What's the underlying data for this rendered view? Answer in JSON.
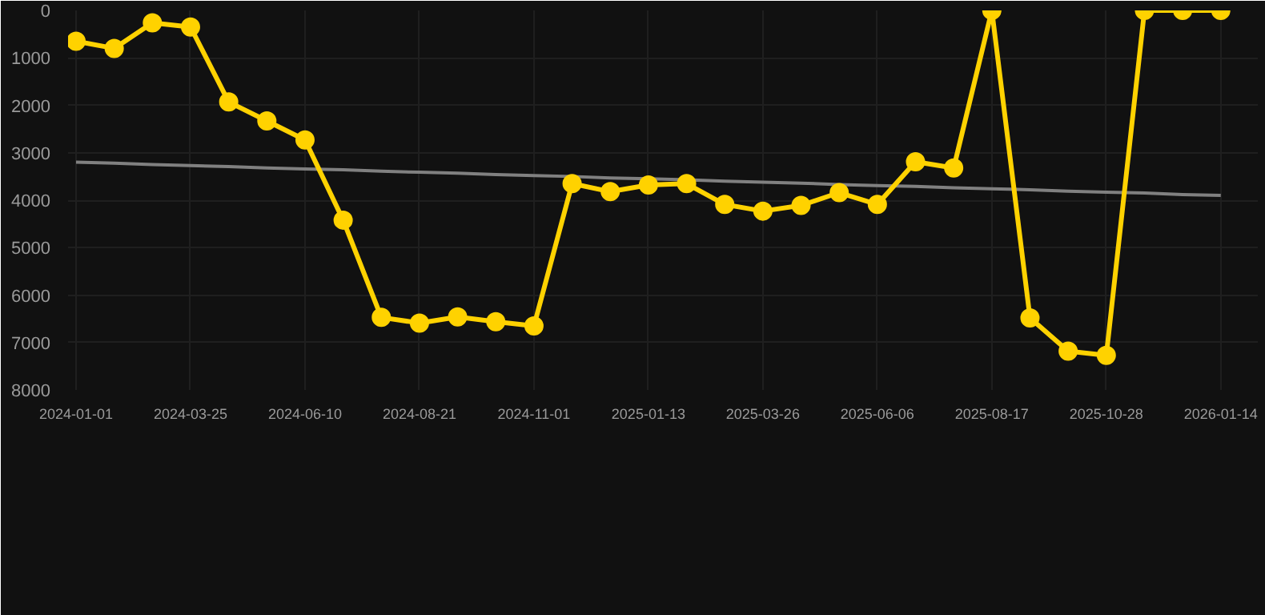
{
  "chart_data": {
    "type": "line",
    "categories": [
      "2024-01-01",
      null,
      null,
      "2024-03-25",
      null,
      null,
      "2024-06-10",
      null,
      null,
      "2024-08-21",
      null,
      null,
      "2024-11-01",
      null,
      null,
      "2025-01-13",
      null,
      null,
      "2025-03-26",
      null,
      null,
      "2025-06-06",
      null,
      null,
      "2025-08-17",
      null,
      null,
      "2025-10-28",
      null,
      null,
      "2026-01-14"
    ],
    "series": [
      {
        "color": "#ffd200",
        "marker": "circle",
        "values": [
          650,
          800,
          260,
          350,
          1930,
          2330,
          2730,
          4420,
          6470,
          6590,
          6460,
          6560,
          6650,
          3650,
          3820,
          3680,
          3650,
          4090,
          4230,
          4110,
          3840,
          4090,
          3190,
          3320,
          0,
          6480,
          7180,
          7270,
          0,
          0,
          0
        ]
      },
      {
        "type": "line",
        "color": "#808080",
        "marker": "none",
        "values": [
          3200,
          3220,
          3250,
          3270,
          3290,
          3320,
          3340,
          3360,
          3390,
          3410,
          3430,
          3460,
          3480,
          3500,
          3530,
          3550,
          3570,
          3600,
          3620,
          3640,
          3670,
          3690,
          3710,
          3740,
          3760,
          3780,
          3810,
          3830,
          3850,
          3880,
          3900
        ]
      }
    ],
    "ylim": [
      8000,
      0
    ],
    "yticks": [
      0,
      1000,
      2000,
      3000,
      4000,
      5000,
      6000,
      7000,
      8000
    ],
    "grid": true,
    "line_style": "solid"
  }
}
